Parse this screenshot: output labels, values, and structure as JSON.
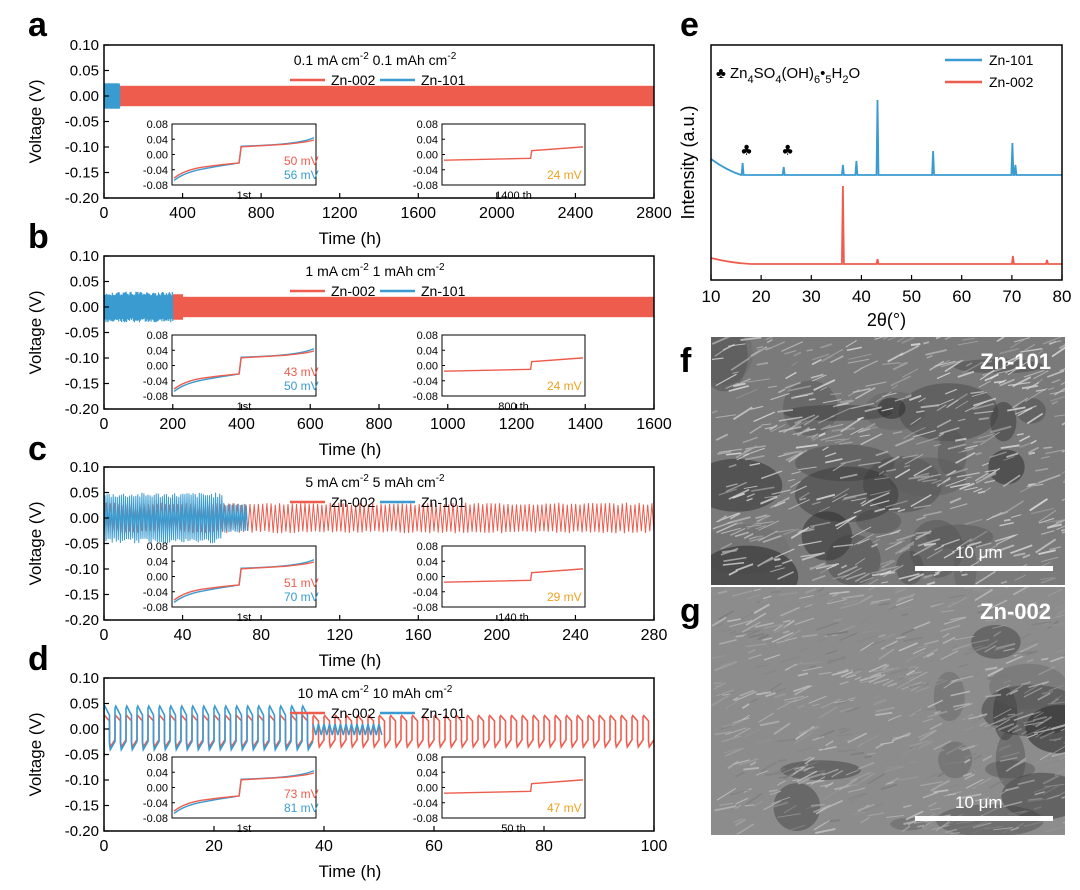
{
  "colors": {
    "zn002": "#ee5c4d",
    "zn101": "#3a9bd0",
    "mv_orange": "#f0a020"
  },
  "panels": {
    "a": {
      "letter": "a",
      "ylabel": "Voltage (V)",
      "xlabel": "Time (h)",
      "cond1": "0.1 mA cm",
      "cond1_sup": "-2",
      "cond2": "0.1 mAh cm",
      "cond2_sup": "-2",
      "legend": [
        "Zn-002",
        "Zn-101"
      ],
      "inset1": {
        "caption": "1st",
        "mv1": "50 mV",
        "mv2": "56 mV"
      },
      "inset2": {
        "caption": "1400 th",
        "mv": "24 mV"
      }
    },
    "b": {
      "letter": "b",
      "ylabel": "Voltage (V)",
      "xlabel": "Time (h)",
      "cond1": "1 mA cm",
      "cond1_sup": "-2",
      "cond2": "1 mAh cm",
      "cond2_sup": "-2",
      "legend": [
        "Zn-002",
        "Zn-101"
      ],
      "inset1": {
        "caption": "1st",
        "mv1": "43 mV",
        "mv2": "50 mV"
      },
      "inset2": {
        "caption": "800 th",
        "mv": "24 mV"
      }
    },
    "c": {
      "letter": "c",
      "ylabel": "Voltage (V)",
      "xlabel": "Time (h)",
      "cond1": "5 mA cm",
      "cond1_sup": "-2",
      "cond2": "5 mAh cm",
      "cond2_sup": "-2",
      "legend": [
        "Zn-002",
        "Zn-101"
      ],
      "inset1": {
        "caption": "1st",
        "mv1": "51 mV",
        "mv2": "70 mV"
      },
      "inset2": {
        "caption": "140 th",
        "mv": "29 mV"
      }
    },
    "d": {
      "letter": "d",
      "ylabel": "Voltage (V)",
      "xlabel": "Time (h)",
      "cond1": "10 mA cm",
      "cond1_sup": "-2",
      "cond2": "10 mAh cm",
      "cond2_sup": "-2",
      "legend": [
        "Zn-002",
        "Zn-101"
      ],
      "inset1": {
        "caption": "1st",
        "mv1": "73 mV",
        "mv2": "81 mV"
      },
      "inset2": {
        "caption": "50 th",
        "mv": "47 mV"
      }
    },
    "e": {
      "letter": "e",
      "ylabel": "Intensity (a.u.)",
      "xlabel": "2θ(°)",
      "annotation": "♣ Zn4SO4(OH)6•5H2O",
      "legend": [
        "Zn-101",
        "Zn-002"
      ]
    },
    "f": {
      "letter": "f",
      "label": "Zn-101",
      "scale": "10 μm"
    },
    "g": {
      "letter": "g",
      "label": "Zn-002",
      "scale": "10 μm"
    }
  },
  "chart_data": [
    {
      "id": "a",
      "type": "line",
      "xlabel": "Time (h)",
      "ylabel": "Voltage (V)",
      "xlim": [
        0,
        2800
      ],
      "ylim": [
        -0.2,
        0.1
      ],
      "xticks": [
        0,
        400,
        800,
        1200,
        1600,
        2000,
        2400,
        2800
      ],
      "yticks": [
        -0.2,
        -0.15,
        -0.1,
        -0.05,
        0.0,
        0.05,
        0.1
      ],
      "series": [
        {
          "name": "Zn-002",
          "x_end": 2800,
          "amplitude": 0.02
        },
        {
          "name": "Zn-101",
          "x_end": 80,
          "amplitude": 0.025
        }
      ],
      "insets": [
        {
          "caption": "1st",
          "ylim": [
            -0.08,
            0.08
          ],
          "yticks": [
            -0.08,
            -0.04,
            0.0,
            0.04,
            0.08
          ],
          "labels": [
            "50 mV",
            "56 mV"
          ]
        },
        {
          "caption": "1400 th",
          "ylim": [
            -0.08,
            0.08
          ],
          "yticks": [
            -0.08,
            -0.04,
            0.0,
            0.04,
            0.08
          ],
          "labels": [
            "24 mV"
          ]
        }
      ]
    },
    {
      "id": "b",
      "type": "line",
      "xlabel": "Time (h)",
      "ylabel": "Voltage (V)",
      "xlim": [
        0,
        1600
      ],
      "ylim": [
        -0.2,
        0.1
      ],
      "xticks": [
        0,
        200,
        400,
        600,
        800,
        1000,
        1200,
        1400,
        1600
      ],
      "yticks": [
        -0.2,
        -0.15,
        -0.1,
        -0.05,
        0.0,
        0.05,
        0.1
      ],
      "series": [
        {
          "name": "Zn-002",
          "x_end": 1600,
          "amplitude": 0.02
        },
        {
          "name": "Zn-101",
          "x_end": 200,
          "amplitude": 0.03
        }
      ],
      "insets": [
        {
          "caption": "1st",
          "ylim": [
            -0.08,
            0.08
          ],
          "yticks": [
            -0.08,
            -0.04,
            0.0,
            0.04,
            0.08
          ],
          "labels": [
            "43 mV",
            "50 mV"
          ]
        },
        {
          "caption": "800 th",
          "ylim": [
            -0.08,
            0.08
          ],
          "yticks": [
            -0.08,
            -0.04,
            0.0,
            0.04,
            0.08
          ],
          "labels": [
            "24 mV"
          ]
        }
      ]
    },
    {
      "id": "c",
      "type": "line",
      "xlabel": "Time (h)",
      "ylabel": "Voltage (V)",
      "xlim": [
        0,
        280
      ],
      "ylim": [
        -0.2,
        0.1
      ],
      "xticks": [
        0,
        40,
        80,
        120,
        160,
        200,
        240,
        280
      ],
      "yticks": [
        -0.2,
        -0.15,
        -0.1,
        -0.05,
        0.0,
        0.05,
        0.1
      ],
      "series": [
        {
          "name": "Zn-002",
          "x_end": 280,
          "amplitude": 0.03
        },
        {
          "name": "Zn-101",
          "x_end": 73,
          "amplitude": 0.05
        }
      ],
      "insets": [
        {
          "caption": "1st",
          "ylim": [
            -0.08,
            0.08
          ],
          "yticks": [
            -0.08,
            -0.04,
            0.0,
            0.04,
            0.08
          ],
          "labels": [
            "51 mV",
            "70 mV"
          ]
        },
        {
          "caption": "140 th",
          "ylim": [
            -0.08,
            0.08
          ],
          "yticks": [
            -0.08,
            -0.04,
            0.0,
            0.04,
            0.08
          ],
          "labels": [
            "29 mV"
          ]
        }
      ]
    },
    {
      "id": "d",
      "type": "line",
      "xlabel": "Time (h)",
      "ylabel": "Voltage (V)",
      "xlim": [
        0,
        100
      ],
      "ylim": [
        -0.2,
        0.1
      ],
      "xticks": [
        0,
        20,
        40,
        60,
        80,
        100
      ],
      "yticks": [
        -0.2,
        -0.15,
        -0.1,
        -0.05,
        0.0,
        0.05,
        0.1
      ],
      "series": [
        {
          "name": "Zn-002",
          "x_end": 100,
          "amplitude": 0.035
        },
        {
          "name": "Zn-101",
          "x_end": 51,
          "amplitude": 0.045
        }
      ],
      "insets": [
        {
          "caption": "1st",
          "ylim": [
            -0.08,
            0.08
          ],
          "yticks": [
            -0.08,
            -0.04,
            0.0,
            0.04,
            0.08
          ],
          "labels": [
            "73 mV",
            "81 mV"
          ]
        },
        {
          "caption": "50 th",
          "ylim": [
            -0.08,
            0.08
          ],
          "yticks": [
            -0.08,
            -0.04,
            0.0,
            0.04,
            0.08
          ],
          "labels": [
            "47 mV"
          ]
        }
      ]
    },
    {
      "id": "e",
      "type": "line",
      "xlabel": "2θ(°)",
      "ylabel": "Intensity (a.u.)",
      "xlim": [
        10,
        80
      ],
      "xticks": [
        10,
        20,
        30,
        40,
        50,
        60,
        70,
        80
      ],
      "series": [
        {
          "name": "Zn-101",
          "peaks": [
            16.3,
            24.5,
            36.3,
            39.0,
            43.2,
            54.3,
            70.1,
            70.7
          ]
        },
        {
          "name": "Zn-002",
          "peaks": [
            36.3,
            43.2,
            70.2,
            77.0
          ]
        }
      ],
      "markers": [
        16.3,
        24.5
      ]
    }
  ]
}
